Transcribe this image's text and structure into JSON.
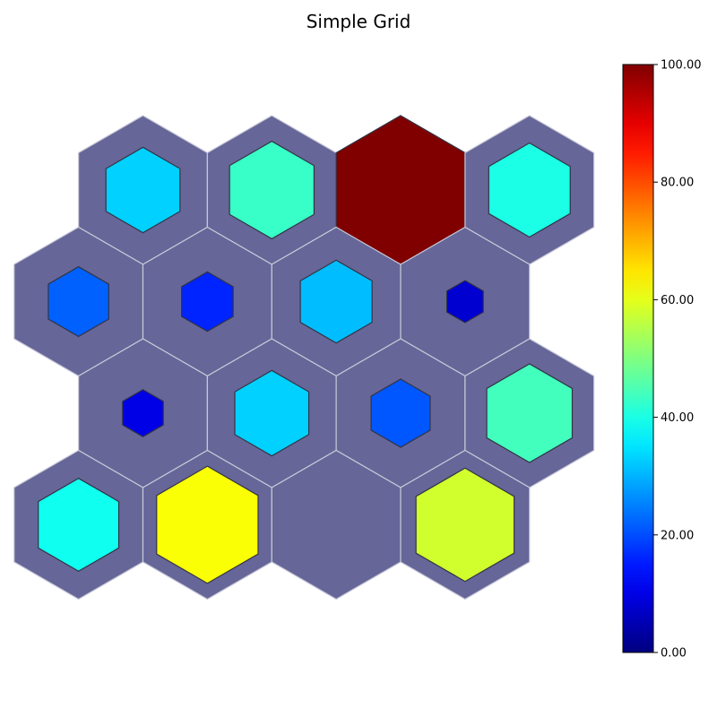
{
  "chart_data": {
    "type": "heatmap",
    "title": "Simple Grid",
    "layout": "hexagonal",
    "background_color": "#666699",
    "colormap": "jet",
    "colorbar": {
      "min": 0,
      "max": 100,
      "ticks": [
        "0.00",
        "20.00",
        "40.00",
        "60.00",
        "80.00",
        "100.00"
      ]
    },
    "rows": [
      {
        "row": 1,
        "values": [
          33,
          43,
          100,
          40
        ]
      },
      {
        "row": 2,
        "values": [
          22,
          16,
          31,
          8
        ]
      },
      {
        "row": 3,
        "values": [
          10,
          33,
          21,
          44
        ]
      },
      {
        "row": 4,
        "values": [
          39,
          62,
          null,
          58
        ]
      }
    ]
  }
}
